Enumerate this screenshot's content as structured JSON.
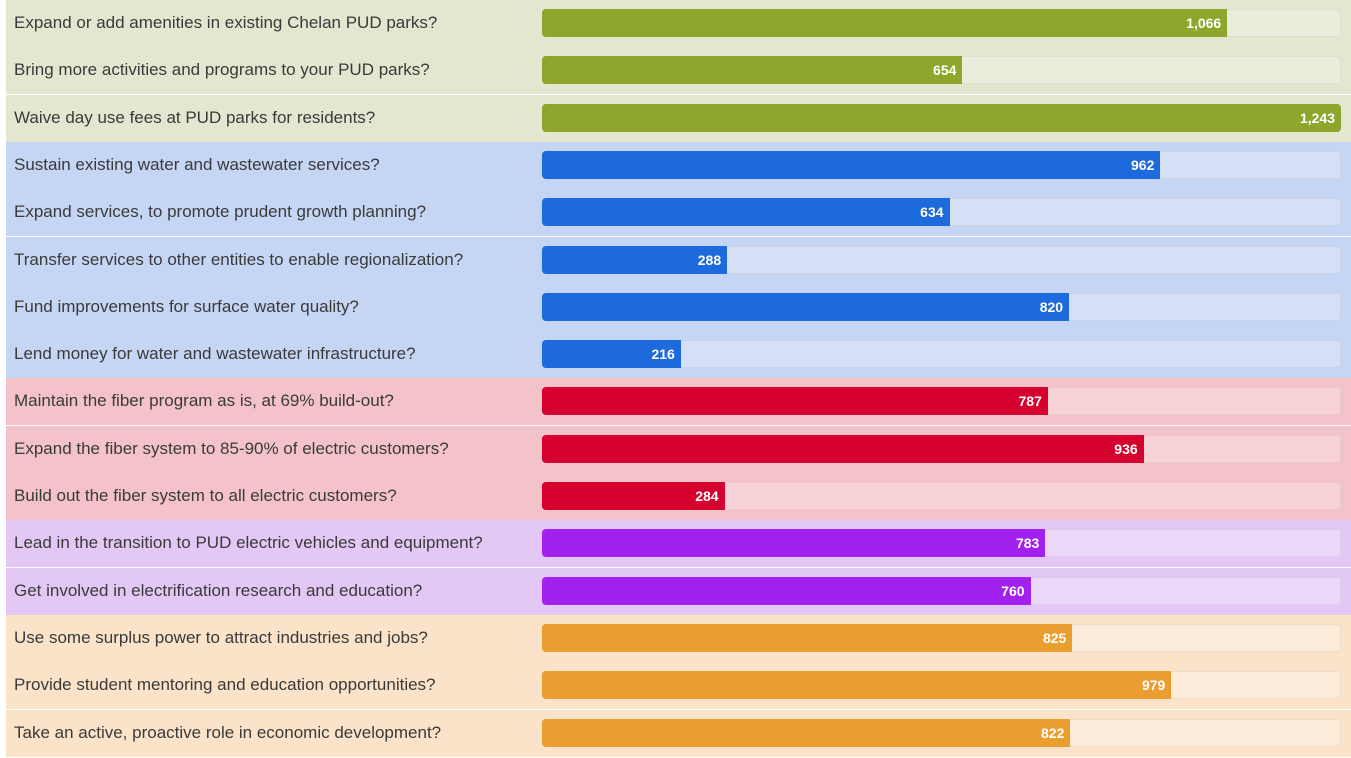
{
  "chart_data": {
    "type": "bar",
    "orientation": "horizontal",
    "xlim": [
      0,
      1243
    ],
    "groups": [
      {
        "color": "#8da62b",
        "background": "#e3e7cf"
      },
      {
        "color": "#1c6adb",
        "background": "#c5d5f4"
      },
      {
        "color": "#d6002e",
        "background": "#f4c3c9"
      },
      {
        "color": "#a122ef",
        "background": "#e3c8f6"
      },
      {
        "color": "#eb9e30",
        "background": "#fae3c9"
      }
    ],
    "categories": [
      "Expand or add amenities in existing Chelan PUD parks?",
      "Bring more activities and programs to your PUD parks?",
      "Waive day use fees at PUD parks for residents?",
      "Sustain existing water and wastewater services?",
      "Expand services, to promote prudent growth planning?",
      "Transfer services to other entities to enable regionalization?",
      "Fund improvements for surface water quality?",
      "Lend money for water and wastewater infrastructure?",
      "Maintain the fiber program as is, at 69% build-out?",
      "Expand the fiber system to 85-90% of electric customers?",
      "Build out the fiber system to all electric customers?",
      "Lead in the transition to PUD electric vehicles and equipment?",
      "Get involved in electrification research and education?",
      "Use some surplus power to attract industries and jobs?",
      "Provide student mentoring and education opportunities?",
      "Take an active, proactive role in economic development?"
    ],
    "values": [
      1066,
      654,
      1243,
      962,
      634,
      288,
      820,
      216,
      787,
      936,
      284,
      783,
      760,
      825,
      979,
      822
    ],
    "value_labels": [
      "1,066",
      "654",
      "1,243",
      "962",
      "634",
      "288",
      "820",
      "216",
      "787",
      "936",
      "284",
      "783",
      "760",
      "825",
      "979",
      "822"
    ],
    "row_group": [
      0,
      0,
      0,
      1,
      1,
      1,
      1,
      1,
      2,
      2,
      2,
      3,
      3,
      4,
      4,
      4
    ]
  }
}
